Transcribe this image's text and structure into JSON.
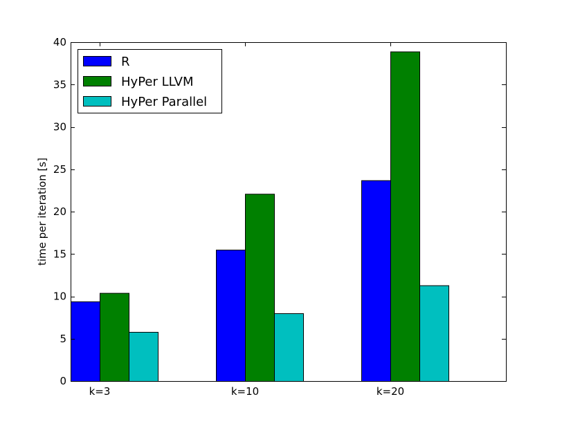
{
  "chart_data": {
    "type": "bar",
    "title": "",
    "xlabel": "",
    "ylabel": "time per iteration [s]",
    "ylim": [
      0,
      40
    ],
    "yticks": [
      0,
      5,
      10,
      15,
      20,
      25,
      30,
      35,
      40
    ],
    "categories": [
      "k=3",
      "k=10",
      "k=20"
    ],
    "series": [
      {
        "name": "R",
        "color": "#0000ff",
        "values": [
          9.4,
          15.5,
          23.7
        ]
      },
      {
        "name": "HyPer LLVM",
        "color": "#008000",
        "values": [
          10.4,
          22.1,
          38.9
        ]
      },
      {
        "name": "HyPer Parallel",
        "color": "#00bfbf",
        "values": [
          5.8,
          8.0,
          11.3
        ]
      }
    ],
    "grid": false,
    "legend": "top-left"
  }
}
